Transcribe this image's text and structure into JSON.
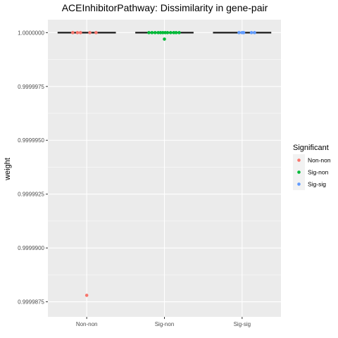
{
  "chart_data": {
    "type": "scatter",
    "title": "ACEInhibitorPathway: Dissimilarity in gene-pair",
    "xlabel": "",
    "ylabel": "weight",
    "categories": [
      "Non-non",
      "Sig-non",
      "Sig-sig"
    ],
    "ylim": [
      0.9999868,
      1.0000006
    ],
    "y_ticks": [
      0.9999875,
      0.99999,
      0.9999925,
      0.999995,
      0.9999975,
      1.0
    ],
    "y_tick_labels": [
      "0.9999875",
      "0.9999900",
      "0.9999925",
      "0.9999950",
      "0.9999975",
      "1.0000000"
    ],
    "grid": true,
    "legend": {
      "title": "Significant",
      "position": "right",
      "entries": [
        "Non-non",
        "Sig-non",
        "Sig-sig"
      ]
    },
    "colors": {
      "Non-non": "#F8766D",
      "Sig-non": "#00BA38",
      "Sig-sig": "#619CFF",
      "panel_bg": "#EBEBEB",
      "grid": "#FFFFFF"
    },
    "boxplots": [
      {
        "category": "Non-non",
        "median": 1.0
      },
      {
        "category": "Sig-non",
        "median": 1.0
      },
      {
        "category": "Sig-sig",
        "median": 1.0
      }
    ],
    "series": [
      {
        "name": "Non-non",
        "points": [
          {
            "x": "Non-non",
            "jitter": -0.18,
            "y": 1.0
          },
          {
            "x": "Non-non",
            "jitter": -0.12,
            "y": 1.0
          },
          {
            "x": "Non-non",
            "jitter": -0.08,
            "y": 1.0
          },
          {
            "x": "Non-non",
            "jitter": 0.04,
            "y": 1.0
          },
          {
            "x": "Non-non",
            "jitter": 0.12,
            "y": 1.0
          },
          {
            "x": "Non-non",
            "jitter": 0.0,
            "y": 0.9999878
          }
        ]
      },
      {
        "name": "Sig-non",
        "points": [
          {
            "x": "Sig-non",
            "jitter": -0.2,
            "y": 1.0
          },
          {
            "x": "Sig-non",
            "jitter": -0.16,
            "y": 1.0
          },
          {
            "x": "Sig-non",
            "jitter": -0.12,
            "y": 1.0
          },
          {
            "x": "Sig-non",
            "jitter": -0.08,
            "y": 1.0
          },
          {
            "x": "Sig-non",
            "jitter": -0.05,
            "y": 1.0
          },
          {
            "x": "Sig-non",
            "jitter": -0.02,
            "y": 1.0
          },
          {
            "x": "Sig-non",
            "jitter": 0.01,
            "y": 1.0
          },
          {
            "x": "Sig-non",
            "jitter": 0.04,
            "y": 1.0
          },
          {
            "x": "Sig-non",
            "jitter": 0.08,
            "y": 1.0
          },
          {
            "x": "Sig-non",
            "jitter": 0.12,
            "y": 1.0
          },
          {
            "x": "Sig-non",
            "jitter": 0.15,
            "y": 1.0
          },
          {
            "x": "Sig-non",
            "jitter": 0.19,
            "y": 1.0
          },
          {
            "x": "Sig-non",
            "jitter": 0.0,
            "y": 0.9999997
          }
        ]
      },
      {
        "name": "Sig-sig",
        "points": [
          {
            "x": "Sig-sig",
            "jitter": -0.04,
            "y": 1.0
          },
          {
            "x": "Sig-sig",
            "jitter": 0.0,
            "y": 1.0
          },
          {
            "x": "Sig-sig",
            "jitter": 0.02,
            "y": 1.0
          },
          {
            "x": "Sig-sig",
            "jitter": 0.12,
            "y": 1.0
          },
          {
            "x": "Sig-sig",
            "jitter": 0.16,
            "y": 1.0
          }
        ]
      }
    ]
  }
}
